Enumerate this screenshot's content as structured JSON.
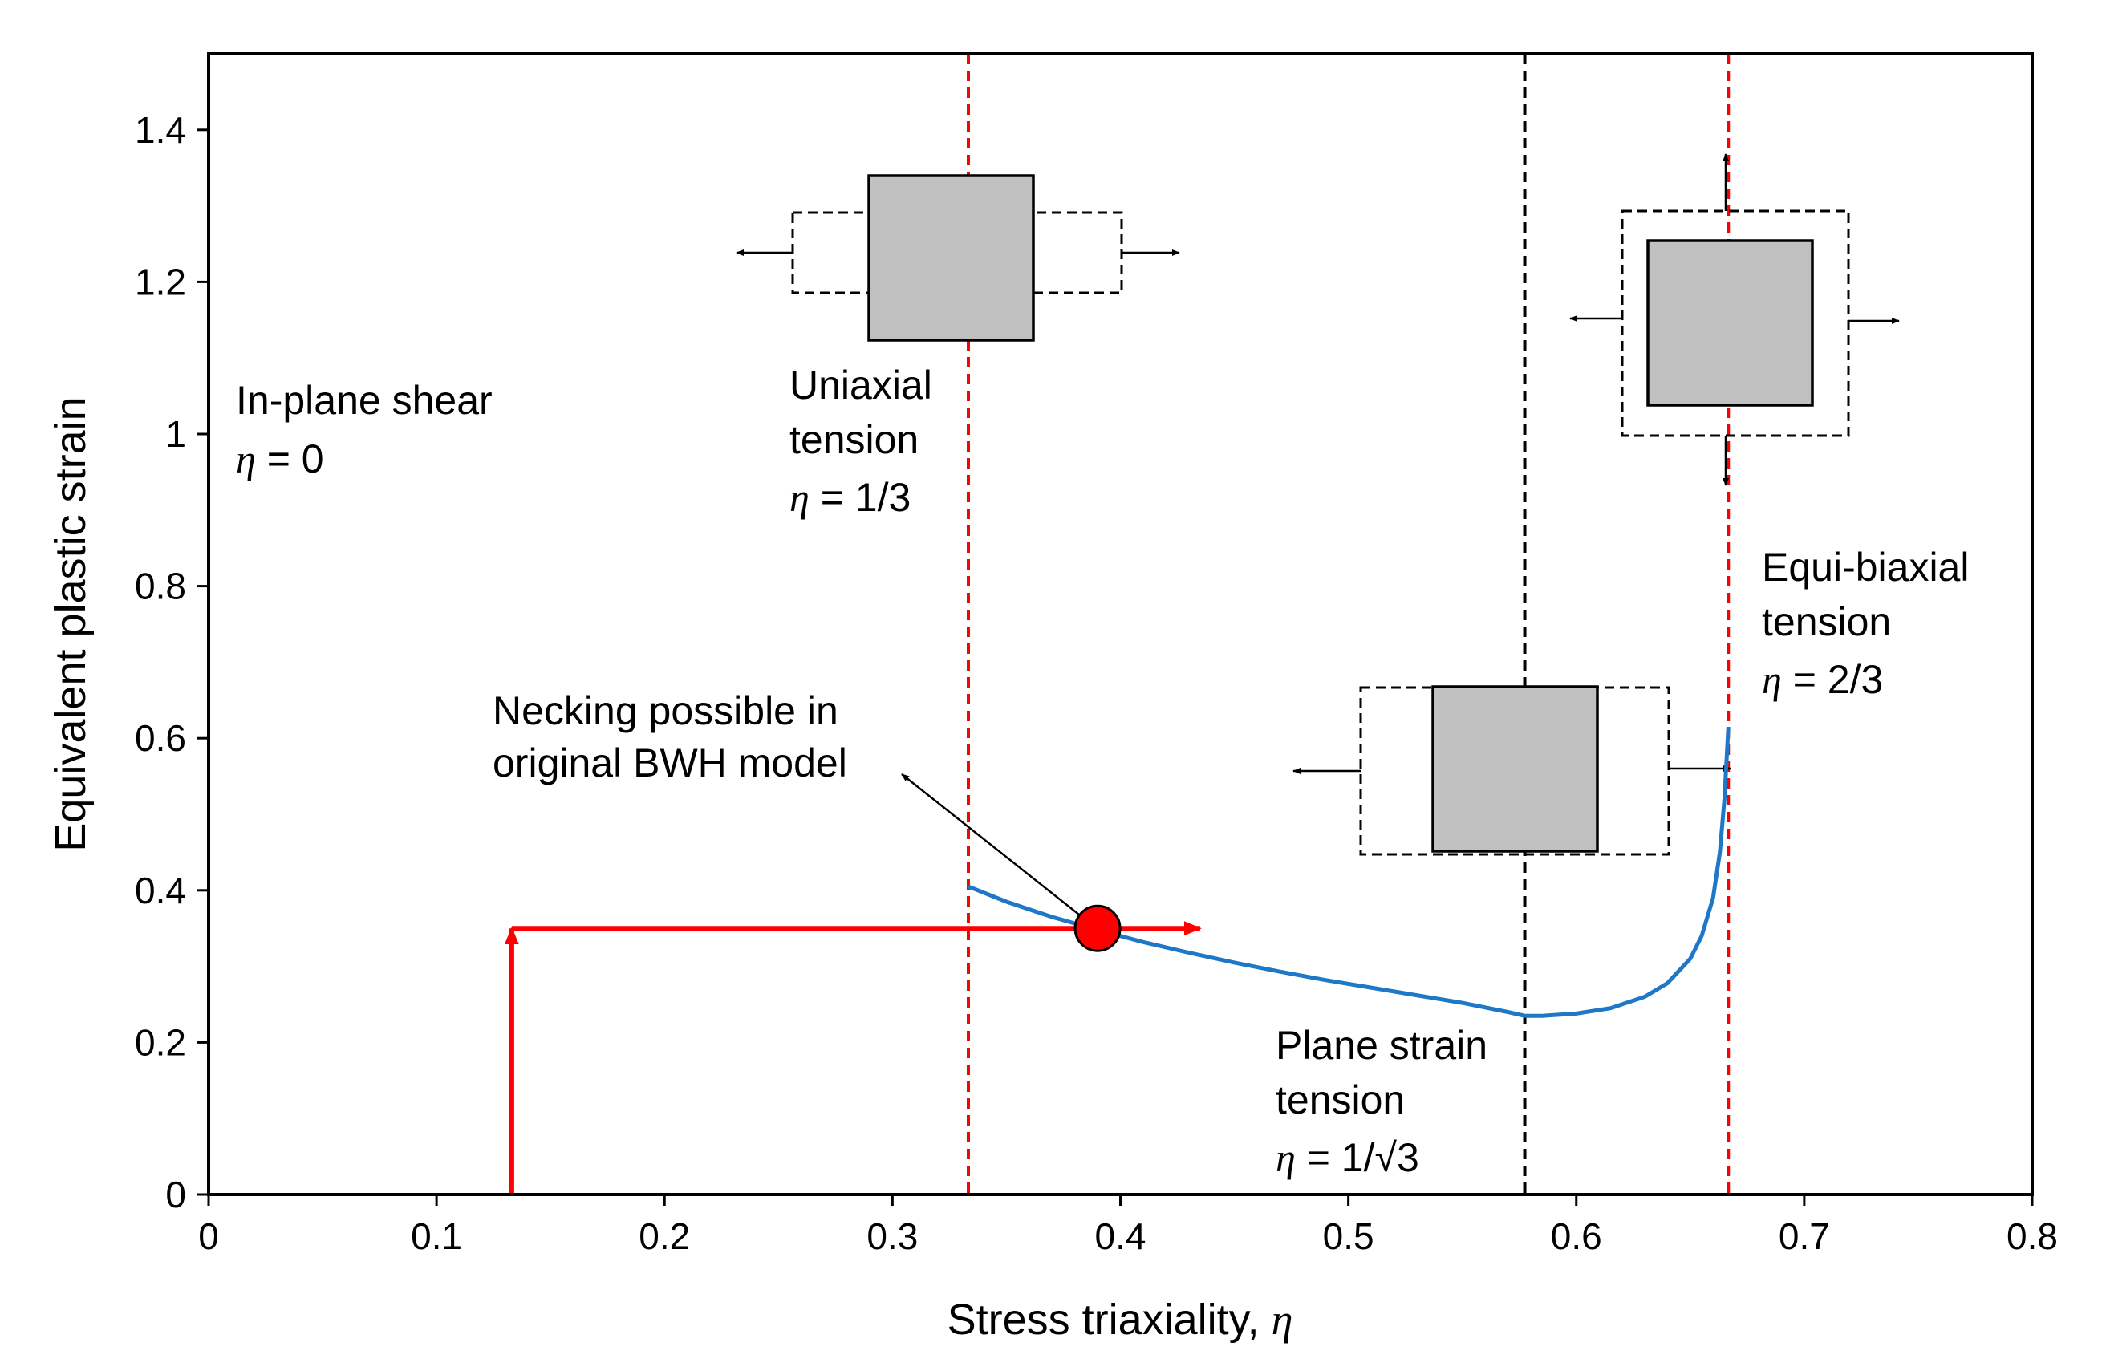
{
  "chart_data": {
    "type": "line",
    "title": "",
    "xlabel": "Stress triaxiality, ",
    "xlabel_symbol": "η",
    "ylabel": "Equivalent plastic strain",
    "xlim": [
      0,
      0.8
    ],
    "ylim": [
      0,
      1.5
    ],
    "x_ticks": [
      "0",
      "0.1",
      "0.2",
      "0.3",
      "0.4",
      "0.5",
      "0.6",
      "0.7",
      "0.8"
    ],
    "y_ticks": [
      "0",
      "0.2",
      "0.4",
      "0.6",
      "0.8",
      "1",
      "1.2",
      "1.4"
    ],
    "grid": false,
    "legend": "none",
    "series": [
      {
        "color": "#1f77c8",
        "x": [
          0.3333,
          0.35,
          0.37,
          0.39,
          0.41,
          0.43,
          0.45,
          0.47,
          0.49,
          0.51,
          0.53,
          0.55,
          0.57,
          0.5774,
          0.585,
          0.6,
          0.615,
          0.63,
          0.64,
          0.65,
          0.655,
          0.66,
          0.663,
          0.665,
          0.6667
        ],
        "y": [
          0.405,
          0.385,
          0.365,
          0.348,
          0.332,
          0.318,
          0.305,
          0.293,
          0.282,
          0.272,
          0.262,
          0.252,
          0.24,
          0.235,
          0.235,
          0.238,
          0.245,
          0.26,
          0.278,
          0.31,
          0.34,
          0.39,
          0.45,
          0.52,
          0.615
        ]
      }
    ],
    "vertical_lines": [
      {
        "x": 0.3333,
        "color": "#ff0000",
        "style": "dashed"
      },
      {
        "x": 0.5774,
        "color": "#000000",
        "style": "dashed"
      },
      {
        "x": 0.6667,
        "color": "#ff0000",
        "style": "dashed"
      }
    ],
    "loading_path": {
      "color": "#ff0000",
      "points": [
        [
          0.133,
          0.0
        ],
        [
          0.133,
          0.35
        ],
        [
          0.435,
          0.35
        ]
      ]
    },
    "marker": {
      "x": 0.39,
      "y": 0.35,
      "color": "#ff0000"
    },
    "annotations": [
      {
        "lines": [
          "In-plane shear"
        ],
        "eta_value": "0"
      },
      {
        "lines": [
          "Uniaxial",
          "tension"
        ],
        "eta_value": "1/3"
      },
      {
        "lines": [
          "Plane strain",
          "tension"
        ],
        "eta_value": "1/√3"
      },
      {
        "lines": [
          "Equi-biaxial",
          "tension"
        ],
        "eta_value": "2/3"
      },
      {
        "lines": [
          "Necking possible in",
          "original BWH model"
        ]
      }
    ],
    "eta_symbol": "η",
    "eta_equals": " = "
  }
}
